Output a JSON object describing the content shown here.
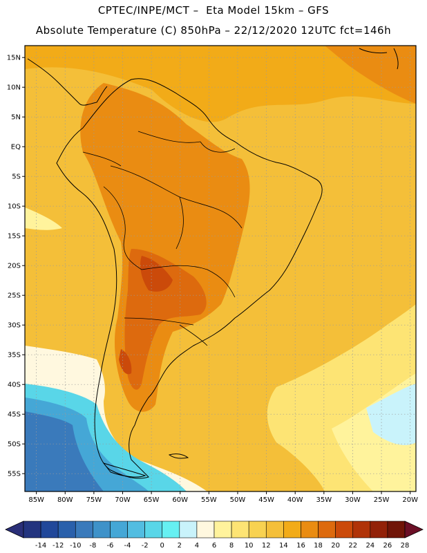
{
  "header": {
    "line1": "CPTEC/INPE/MCT –  Eta Model 15km – GFS",
    "line2": "Absolute Temperature (C) 850hPa – 22/12/2020 12UTC fct=146h"
  },
  "map": {
    "lat_labels": [
      "15N",
      "10N",
      "5N",
      "EQ",
      "5S",
      "10S",
      "15S",
      "20S",
      "25S",
      "30S",
      "35S",
      "40S",
      "45S",
      "50S",
      "55S"
    ],
    "lon_labels": [
      "85W",
      "80W",
      "75W",
      "70W",
      "65W",
      "60W",
      "55W",
      "50W",
      "45W",
      "40W",
      "35W",
      "30W",
      "25W",
      "20W"
    ],
    "lat_values": [
      15,
      10,
      5,
      0,
      -5,
      -10,
      -15,
      -20,
      -25,
      -30,
      -35,
      -40,
      -45,
      -50,
      -55
    ],
    "lon_values": [
      -85,
      -80,
      -75,
      -70,
      -65,
      -60,
      -55,
      -50,
      -45,
      -40,
      -35,
      -30,
      -25,
      -20
    ]
  },
  "colorbar": {
    "labels": [
      "-14",
      "-12",
      "-10",
      "-8",
      "-6",
      "-4",
      "-2",
      "0",
      "2",
      "4",
      "6",
      "8",
      "10",
      "12",
      "14",
      "16",
      "18",
      "20",
      "22",
      "24",
      "26",
      "28"
    ],
    "colors": [
      "#23347f",
      "#21489a",
      "#2a60ab",
      "#3a7abb",
      "#3e92c9",
      "#45a7d6",
      "#52bde1",
      "#59d6e8",
      "#66f0f2",
      "#c9f3fb",
      "#fff8df",
      "#fff39c",
      "#fde474",
      "#f8d251",
      "#f4bf39",
      "#f2ab18",
      "#ea8c12",
      "#dd6a0e",
      "#cb4a0a",
      "#b03308",
      "#922108",
      "#701508"
    ],
    "low_arrow_color": "#2a2f78",
    "high_arrow_color": "#6b0f26"
  }
}
